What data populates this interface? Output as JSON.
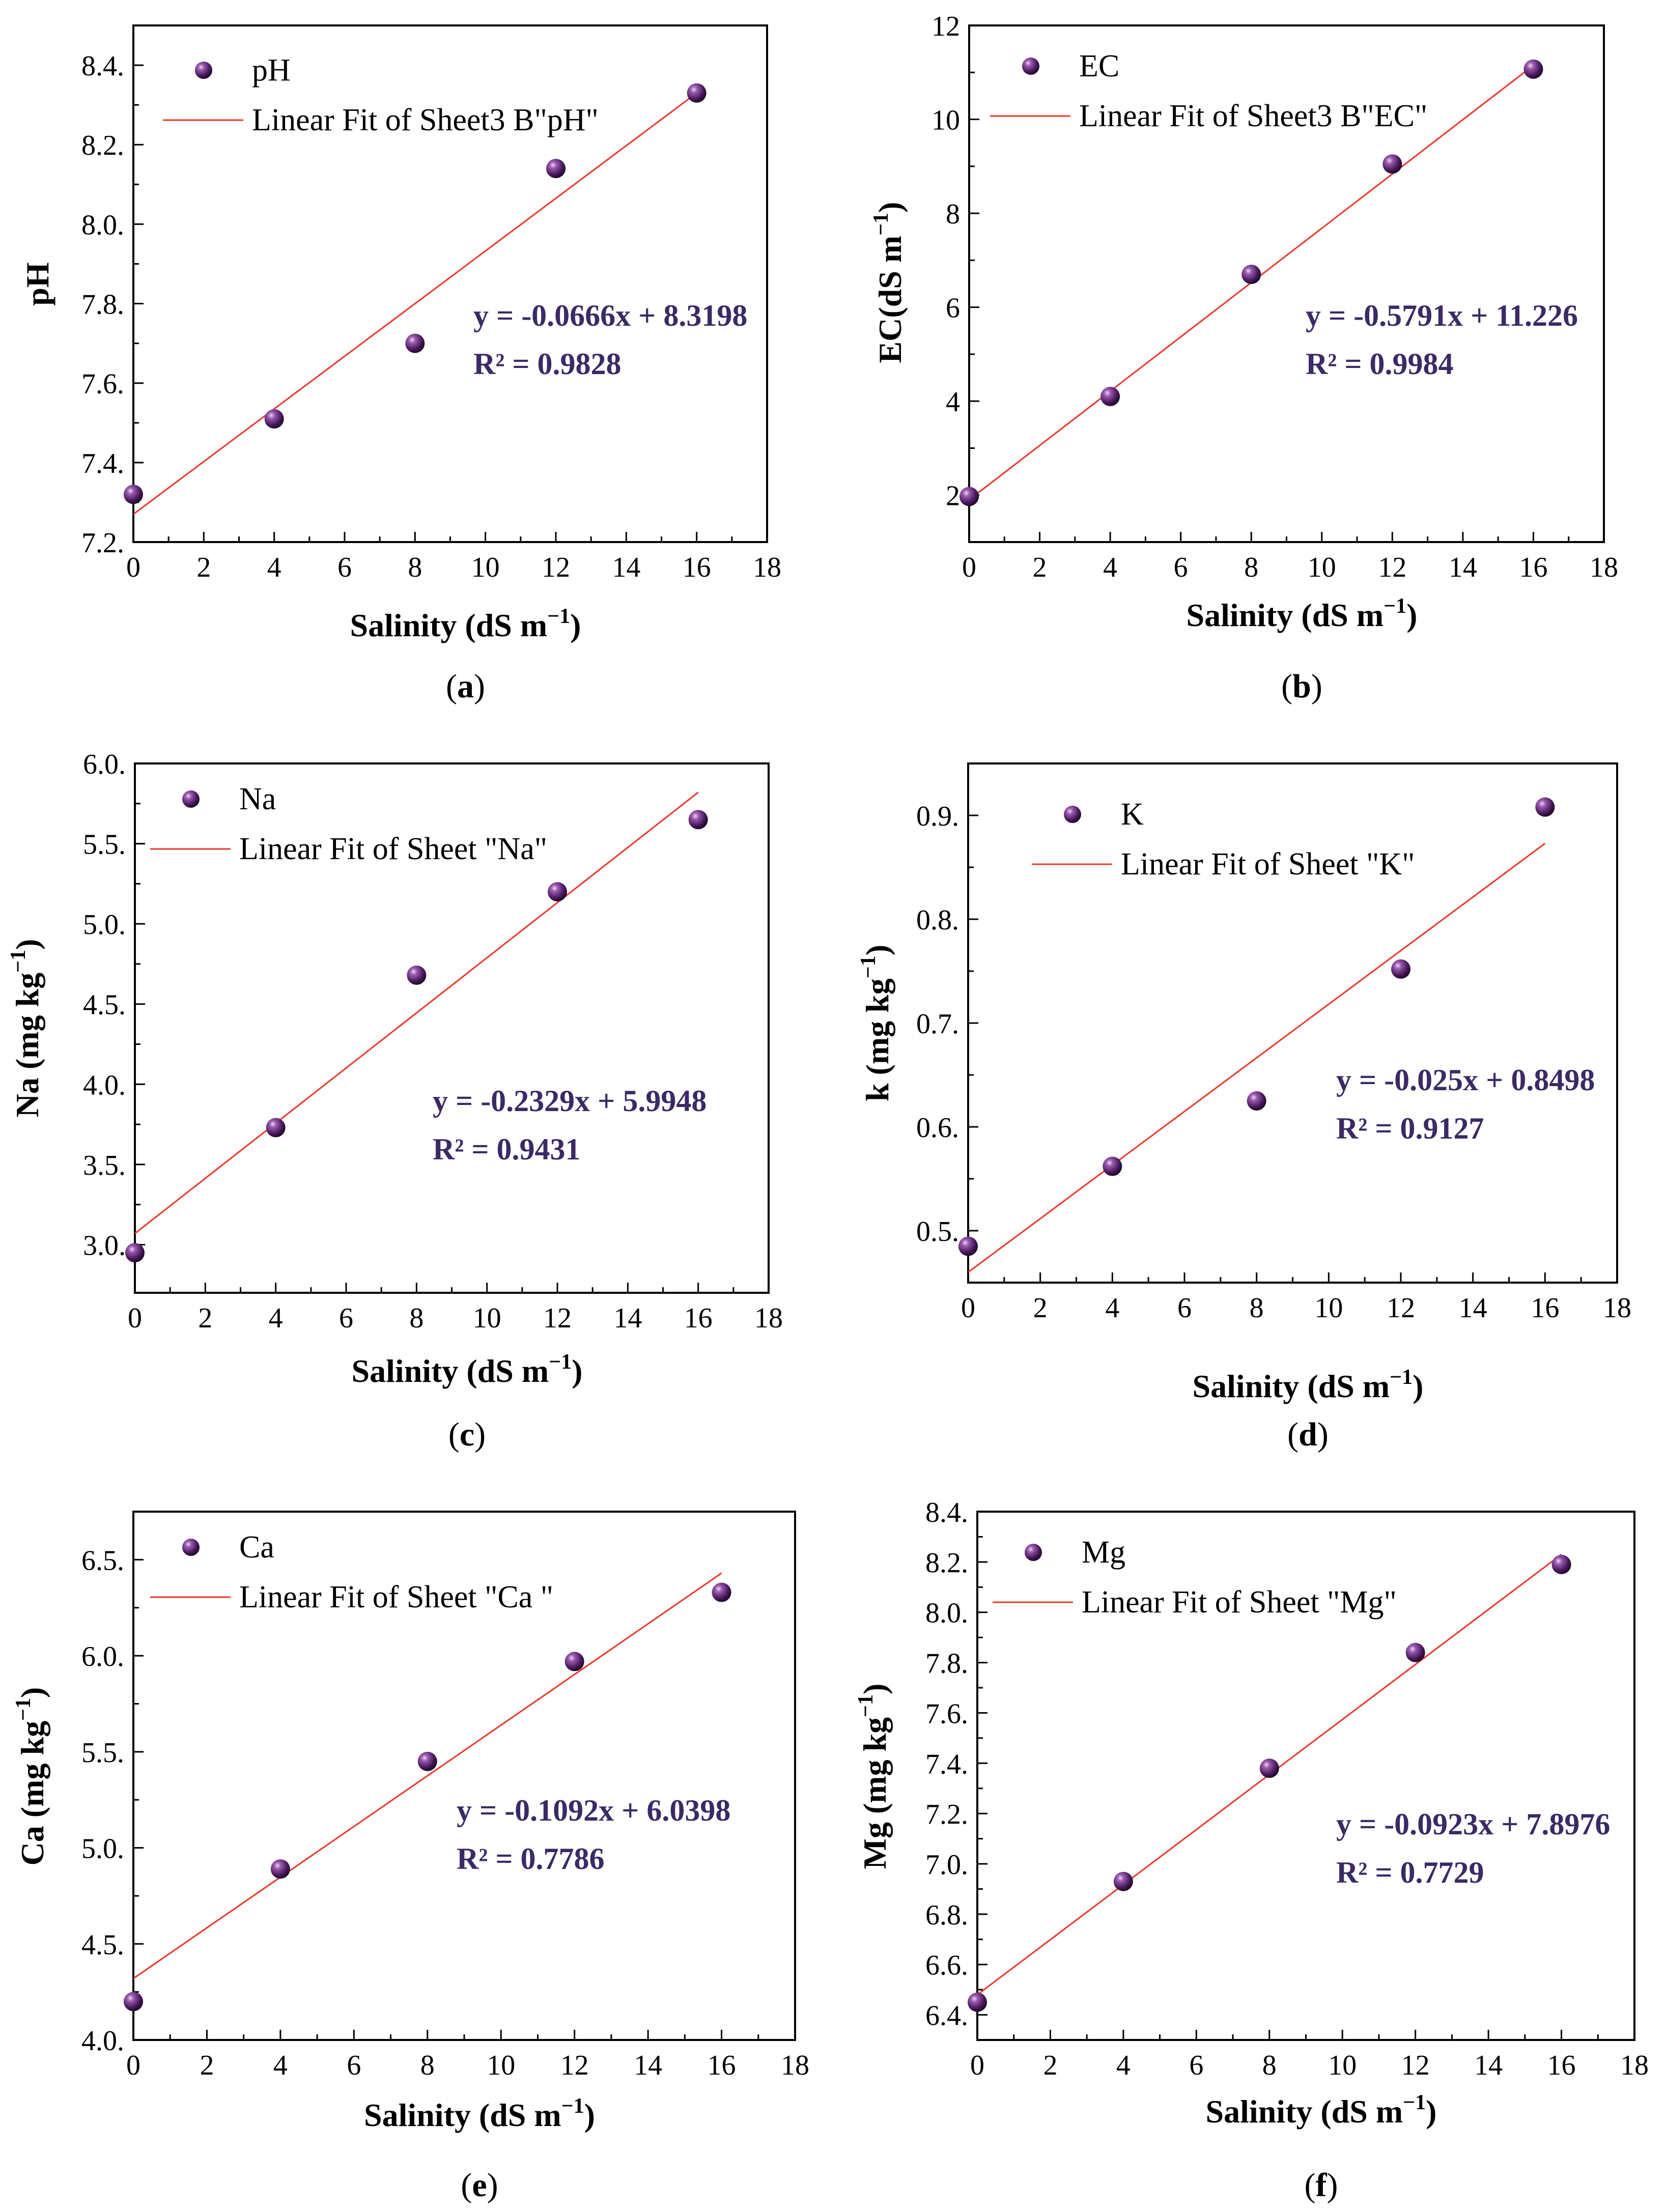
{
  "colors": {
    "marker": "#4a1a5e",
    "marker_highlight": "#c9a6d6",
    "fit_line": "#e8382b",
    "equation_text": "#3b2a66"
  },
  "chart_data": [
    {
      "type": "scatter",
      "panel_label": "a",
      "caption_open": "(",
      "caption_close": ")",
      "xlabel_main": "Salinity (dS m",
      "xlabel_sup": "−1",
      "xlabel_end": ")",
      "ylabel_main": "pH",
      "ylabel_sup": "",
      "ylabel_end": "",
      "xlim": [
        0,
        18
      ],
      "ylim": [
        7.2,
        8.5
      ],
      "xticks": [
        "0",
        "2",
        "4",
        "6",
        "8",
        "10",
        "12",
        "14",
        "16",
        "18"
      ],
      "yticks": [
        {
          "value": 7.2,
          "label": "7.2."
        },
        {
          "value": 7.4,
          "label": "7.4."
        },
        {
          "value": 7.6,
          "label": "7.6."
        },
        {
          "value": 7.8,
          "label": "7.8."
        },
        {
          "value": 8.0,
          "label": "8.0."
        },
        {
          "value": 8.2,
          "label": "8.2."
        },
        {
          "value": 8.4,
          "label": "8.4."
        }
      ],
      "series": [
        {
          "name": "pH",
          "x": [
            0,
            4,
            8,
            12,
            16
          ],
          "y": [
            7.32,
            7.51,
            7.7,
            8.14,
            8.33
          ]
        }
      ],
      "fit": {
        "label": "Linear Fit of Sheet3 B\"pH\"",
        "x": [
          0,
          16
        ],
        "y": [
          7.27,
          8.33
        ]
      },
      "equation": "y = -0.0666x + 8.3198",
      "r2": "R² = 0.9828"
    },
    {
      "type": "scatter",
      "panel_label": "b",
      "caption_open": "(",
      "caption_close": ")",
      "xlabel_main": "Salinity (dS m",
      "xlabel_sup": "−1",
      "xlabel_end": ")",
      "ylabel_main": "EC(dS m",
      "ylabel_sup": "−1",
      "ylabel_end": ")",
      "xlim": [
        0,
        18
      ],
      "ylim": [
        1,
        12
      ],
      "xticks": [
        "0",
        "2",
        "4",
        "6",
        "8",
        "10",
        "12",
        "14",
        "16",
        "18"
      ],
      "yticks": [
        {
          "value": 2,
          "label": "2"
        },
        {
          "value": 4,
          "label": "4"
        },
        {
          "value": 6,
          "label": "6"
        },
        {
          "value": 8,
          "label": "8"
        },
        {
          "value": 10,
          "label": "10"
        },
        {
          "value": 12,
          "label": "12"
        }
      ],
      "series": [
        {
          "name": "EC",
          "x": [
            0,
            4,
            8,
            12,
            16
          ],
          "y": [
            1.97,
            4.1,
            6.7,
            9.05,
            11.07
          ]
        }
      ],
      "fit": {
        "label": "Linear Fit of Sheet3 B\"EC\"",
        "x": [
          0,
          16
        ],
        "y": [
          1.9,
          11.15
        ]
      },
      "equation": "y = -0.5791x + 11.226",
      "r2": "R² = 0.9984"
    },
    {
      "type": "scatter",
      "panel_label": "c",
      "caption_open": "(",
      "caption_close": ")",
      "xlabel_main": "Salinity (dS m",
      "xlabel_sup": "−1",
      "xlabel_end": ")",
      "ylabel_main": "Na (mg kg",
      "ylabel_sup": "−1",
      "ylabel_end": ")",
      "xlim": [
        0,
        18
      ],
      "ylim": [
        2.7,
        6.0
      ],
      "xticks": [
        "0",
        "2",
        "4",
        "6",
        "8",
        "10",
        "12",
        "14",
        "16",
        "18"
      ],
      "yticks": [
        {
          "value": 3.0,
          "label": "3.0."
        },
        {
          "value": 3.5,
          "label": "3.5."
        },
        {
          "value": 4.0,
          "label": "4.0."
        },
        {
          "value": 4.5,
          "label": "4.5."
        },
        {
          "value": 5.0,
          "label": "5.0."
        },
        {
          "value": 5.5,
          "label": "5.5."
        },
        {
          "value": 6.0,
          "label": "6.0."
        }
      ],
      "series": [
        {
          "name": "Na",
          "x": [
            0,
            4,
            8,
            12,
            16
          ],
          "y": [
            2.95,
            3.73,
            4.68,
            5.2,
            5.65
          ]
        }
      ],
      "fit": {
        "label": "Linear Fit of Sheet \"Na\"",
        "x": [
          0,
          16
        ],
        "y": [
          3.07,
          5.82
        ]
      },
      "equation": "y = -0.2329x + 5.9948",
      "r2": "R² = 0.9431"
    },
    {
      "type": "scatter",
      "panel_label": "d",
      "caption_open": "(",
      "caption_close": ")",
      "xlabel_main": "Salinity (dS m",
      "xlabel_sup": "−1",
      "xlabel_end": ")",
      "ylabel_main": "k (mg kg",
      "ylabel_sup": "−1",
      "ylabel_end": ")",
      "xlim": [
        0,
        18
      ],
      "ylim": [
        0.45,
        0.95
      ],
      "xticks": [
        "0",
        "2",
        "4",
        "6",
        "8",
        "10",
        "12",
        "14",
        "16",
        "18"
      ],
      "yticks": [
        {
          "value": 0.5,
          "label": "0.5."
        },
        {
          "value": 0.6,
          "label": "0.6."
        },
        {
          "value": 0.7,
          "label": "0.7."
        },
        {
          "value": 0.8,
          "label": "0.8."
        },
        {
          "value": 0.9,
          "label": "0.9."
        }
      ],
      "series": [
        {
          "name": "K",
          "x": [
            0,
            4,
            8,
            12,
            16
          ],
          "y": [
            0.485,
            0.562,
            0.625,
            0.752,
            0.908
          ]
        }
      ],
      "fit": {
        "label": "Linear Fit of Sheet \"K\"",
        "x": [
          0,
          16
        ],
        "y": [
          0.46,
          0.873
        ]
      },
      "equation": "y = -0.025x + 0.8498",
      "r2": "R² = 0.9127"
    },
    {
      "type": "scatter",
      "panel_label": "e",
      "caption_open": "(",
      "caption_close": ")",
      "xlabel_main": "Salinity (dS m",
      "xlabel_sup": "−1",
      "xlabel_end": ")",
      "ylabel_main": "Ca (mg kg",
      "ylabel_sup": "−1",
      "ylabel_end": ")",
      "xlim": [
        0,
        18
      ],
      "ylim": [
        4.0,
        6.75
      ],
      "xticks": [
        "0",
        "2",
        "4",
        "6",
        "8",
        "10",
        "12",
        "14",
        "16",
        "18"
      ],
      "yticks": [
        {
          "value": 4.0,
          "label": "4.0."
        },
        {
          "value": 4.5,
          "label": "4.5."
        },
        {
          "value": 5.0,
          "label": "5.0."
        },
        {
          "value": 5.5,
          "label": "5.5."
        },
        {
          "value": 6.0,
          "label": "6.0."
        },
        {
          "value": 6.5,
          "label": "6.5."
        }
      ],
      "series": [
        {
          "name": "Ca",
          "x": [
            0,
            4,
            8,
            12,
            16
          ],
          "y": [
            4.2,
            4.89,
            5.45,
            5.97,
            6.33
          ]
        }
      ],
      "fit": {
        "label": "Linear Fit of Sheet \"Ca \"",
        "x": [
          0,
          16
        ],
        "y": [
          4.32,
          6.43
        ]
      },
      "equation": "y = -0.1092x + 6.0398",
      "r2": "R² = 0.7786"
    },
    {
      "type": "scatter",
      "panel_label": "f",
      "caption_open": "(",
      "caption_close": ")",
      "xlabel_main": "Salinity (dS m",
      "xlabel_sup": "−1",
      "xlabel_end": ")",
      "ylabel_main": "Mg (mg kg",
      "ylabel_sup": "−1",
      "ylabel_end": ")",
      "xlim": [
        0,
        18
      ],
      "ylim": [
        6.3,
        8.4
      ],
      "xticks": [
        "0",
        "2",
        "4",
        "6",
        "8",
        "10",
        "12",
        "14",
        "16",
        "18"
      ],
      "yticks": [
        {
          "value": 6.4,
          "label": "6.4."
        },
        {
          "value": 6.6,
          "label": "6.6."
        },
        {
          "value": 6.8,
          "label": "6.8."
        },
        {
          "value": 7.0,
          "label": "7.0."
        },
        {
          "value": 7.2,
          "label": "7.2."
        },
        {
          "value": 7.4,
          "label": "7.4."
        },
        {
          "value": 7.6,
          "label": "7.6."
        },
        {
          "value": 7.8,
          "label": "7.8."
        },
        {
          "value": 8.0,
          "label": "8.0."
        },
        {
          "value": 8.2,
          "label": "8.2."
        },
        {
          "value": 8.4,
          "label": "8.4."
        }
      ],
      "series": [
        {
          "name": "Mg",
          "x": [
            0,
            4,
            8,
            12,
            16
          ],
          "y": [
            6.45,
            6.93,
            7.38,
            7.84,
            8.19
          ]
        }
      ],
      "fit": {
        "label": "Linear Fit of Sheet \"Mg\"",
        "x": [
          0,
          16
        ],
        "y": [
          6.48,
          8.23
        ]
      },
      "equation": "y = -0.0923x + 7.8976",
      "r2": "R² = 0.7729"
    }
  ]
}
